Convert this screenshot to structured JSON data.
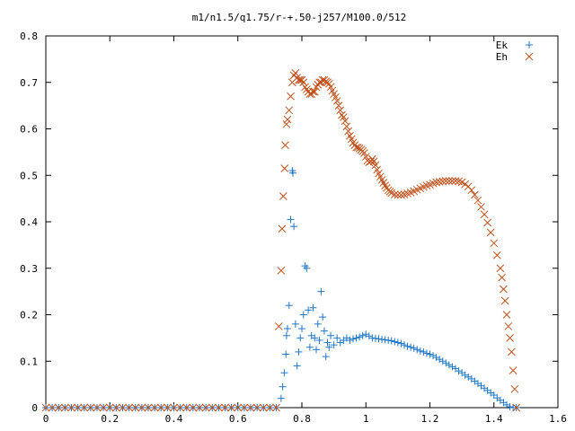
{
  "chart_data": {
    "type": "scatter",
    "title": "m1/n1.5/q1.75/r-+.50-j257/M100.0/512",
    "xlabel": "",
    "ylabel": "",
    "xlim": [
      0,
      1.6
    ],
    "ylim": [
      0,
      0.8
    ],
    "x_ticks": [
      "0",
      "0.2",
      "0.4",
      "0.6",
      "0.8",
      "1",
      "1.2",
      "1.4",
      "1.6"
    ],
    "y_ticks": [
      "0",
      "0.1",
      "0.2",
      "0.3",
      "0.4",
      "0.5",
      "0.6",
      "0.7",
      "0.8"
    ],
    "grid": false,
    "legend_position": "top-right",
    "series": [
      {
        "name": "Ek",
        "marker": "plus",
        "color": "#1f77c8",
        "points": [
          [
            0.0,
            0
          ],
          [
            0.02,
            0
          ],
          [
            0.04,
            0
          ],
          [
            0.06,
            0
          ],
          [
            0.08,
            0
          ],
          [
            0.1,
            0
          ],
          [
            0.12,
            0
          ],
          [
            0.14,
            0
          ],
          [
            0.16,
            0
          ],
          [
            0.18,
            0
          ],
          [
            0.2,
            0
          ],
          [
            0.22,
            0
          ],
          [
            0.24,
            0
          ],
          [
            0.26,
            0
          ],
          [
            0.28,
            0
          ],
          [
            0.3,
            0
          ],
          [
            0.32,
            0
          ],
          [
            0.34,
            0
          ],
          [
            0.36,
            0
          ],
          [
            0.38,
            0
          ],
          [
            0.4,
            0
          ],
          [
            0.42,
            0
          ],
          [
            0.44,
            0
          ],
          [
            0.46,
            0
          ],
          [
            0.48,
            0
          ],
          [
            0.5,
            0
          ],
          [
            0.52,
            0
          ],
          [
            0.54,
            0
          ],
          [
            0.56,
            0
          ],
          [
            0.58,
            0
          ],
          [
            0.6,
            0
          ],
          [
            0.62,
            0
          ],
          [
            0.64,
            0
          ],
          [
            0.66,
            0
          ],
          [
            0.68,
            0
          ],
          [
            0.7,
            0
          ],
          [
            0.72,
            0
          ],
          [
            0.735,
            0.02
          ],
          [
            0.74,
            0.045
          ],
          [
            0.745,
            0.075
          ],
          [
            0.75,
            0.115
          ],
          [
            0.752,
            0.155
          ],
          [
            0.755,
            0.17
          ],
          [
            0.76,
            0.22
          ],
          [
            0.765,
            0.405
          ],
          [
            0.77,
            0.51
          ],
          [
            0.772,
            0.505
          ],
          [
            0.775,
            0.39
          ],
          [
            0.78,
            0.18
          ],
          [
            0.785,
            0.09
          ],
          [
            0.79,
            0.12
          ],
          [
            0.795,
            0.15
          ],
          [
            0.8,
            0.17
          ],
          [
            0.805,
            0.2
          ],
          [
            0.81,
            0.305
          ],
          [
            0.815,
            0.3
          ],
          [
            0.82,
            0.21
          ],
          [
            0.825,
            0.13
          ],
          [
            0.83,
            0.155
          ],
          [
            0.835,
            0.215
          ],
          [
            0.84,
            0.15
          ],
          [
            0.845,
            0.125
          ],
          [
            0.85,
            0.18
          ],
          [
            0.855,
            0.145
          ],
          [
            0.86,
            0.25
          ],
          [
            0.865,
            0.195
          ],
          [
            0.87,
            0.165
          ],
          [
            0.875,
            0.11
          ],
          [
            0.88,
            0.14
          ],
          [
            0.885,
            0.13
          ],
          [
            0.89,
            0.155
          ],
          [
            0.9,
            0.135
          ],
          [
            0.91,
            0.15
          ],
          [
            0.92,
            0.14
          ],
          [
            0.93,
            0.145
          ],
          [
            0.94,
            0.15
          ],
          [
            0.95,
            0.145
          ],
          [
            0.96,
            0.148
          ],
          [
            0.97,
            0.15
          ],
          [
            0.98,
            0.152
          ],
          [
            0.99,
            0.155
          ],
          [
            1.0,
            0.158
          ],
          [
            1.01,
            0.154
          ],
          [
            1.02,
            0.15
          ],
          [
            1.03,
            0.149
          ],
          [
            1.04,
            0.148
          ],
          [
            1.05,
            0.147
          ],
          [
            1.06,
            0.146
          ],
          [
            1.07,
            0.145
          ],
          [
            1.08,
            0.144
          ],
          [
            1.09,
            0.142
          ],
          [
            1.1,
            0.14
          ],
          [
            1.11,
            0.138
          ],
          [
            1.12,
            0.135
          ],
          [
            1.13,
            0.132
          ],
          [
            1.14,
            0.13
          ],
          [
            1.15,
            0.128
          ],
          [
            1.16,
            0.125
          ],
          [
            1.17,
            0.122
          ],
          [
            1.18,
            0.12
          ],
          [
            1.19,
            0.117
          ],
          [
            1.2,
            0.115
          ],
          [
            1.21,
            0.112
          ],
          [
            1.22,
            0.108
          ],
          [
            1.23,
            0.104
          ],
          [
            1.24,
            0.1
          ],
          [
            1.25,
            0.096
          ],
          [
            1.26,
            0.092
          ],
          [
            1.27,
            0.088
          ],
          [
            1.28,
            0.084
          ],
          [
            1.29,
            0.079
          ],
          [
            1.3,
            0.075
          ],
          [
            1.31,
            0.07
          ],
          [
            1.32,
            0.066
          ],
          [
            1.33,
            0.062
          ],
          [
            1.34,
            0.057
          ],
          [
            1.35,
            0.052
          ],
          [
            1.36,
            0.047
          ],
          [
            1.37,
            0.042
          ],
          [
            1.38,
            0.037
          ],
          [
            1.39,
            0.032
          ],
          [
            1.4,
            0.027
          ],
          [
            1.41,
            0.021
          ],
          [
            1.42,
            0.016
          ],
          [
            1.43,
            0.011
          ],
          [
            1.44,
            0.006
          ],
          [
            1.45,
            0.002
          ],
          [
            1.46,
            0
          ],
          [
            1.47,
            0
          ]
        ]
      },
      {
        "name": "Eh",
        "marker": "cross",
        "color": "#c0501a",
        "points": [
          [
            0.0,
            0
          ],
          [
            0.02,
            0
          ],
          [
            0.04,
            0
          ],
          [
            0.06,
            0
          ],
          [
            0.08,
            0
          ],
          [
            0.1,
            0
          ],
          [
            0.12,
            0
          ],
          [
            0.14,
            0
          ],
          [
            0.16,
            0
          ],
          [
            0.18,
            0
          ],
          [
            0.2,
            0
          ],
          [
            0.22,
            0
          ],
          [
            0.24,
            0
          ],
          [
            0.26,
            0
          ],
          [
            0.28,
            0
          ],
          [
            0.3,
            0
          ],
          [
            0.32,
            0
          ],
          [
            0.34,
            0
          ],
          [
            0.36,
            0
          ],
          [
            0.38,
            0
          ],
          [
            0.4,
            0
          ],
          [
            0.42,
            0
          ],
          [
            0.44,
            0
          ],
          [
            0.46,
            0
          ],
          [
            0.48,
            0
          ],
          [
            0.5,
            0
          ],
          [
            0.52,
            0
          ],
          [
            0.54,
            0
          ],
          [
            0.56,
            0
          ],
          [
            0.58,
            0
          ],
          [
            0.6,
            0
          ],
          [
            0.62,
            0
          ],
          [
            0.64,
            0
          ],
          [
            0.66,
            0
          ],
          [
            0.68,
            0
          ],
          [
            0.7,
            0
          ],
          [
            0.72,
            0
          ],
          [
            0.728,
            0.175
          ],
          [
            0.735,
            0.295
          ],
          [
            0.738,
            0.385
          ],
          [
            0.742,
            0.455
          ],
          [
            0.746,
            0.515
          ],
          [
            0.748,
            0.565
          ],
          [
            0.752,
            0.61
          ],
          [
            0.755,
            0.62
          ],
          [
            0.76,
            0.64
          ],
          [
            0.765,
            0.67
          ],
          [
            0.77,
            0.7
          ],
          [
            0.775,
            0.715
          ],
          [
            0.78,
            0.72
          ],
          [
            0.785,
            0.71
          ],
          [
            0.79,
            0.705
          ],
          [
            0.795,
            0.705
          ],
          [
            0.8,
            0.705
          ],
          [
            0.805,
            0.7
          ],
          [
            0.81,
            0.69
          ],
          [
            0.815,
            0.685
          ],
          [
            0.82,
            0.68
          ],
          [
            0.825,
            0.675
          ],
          [
            0.83,
            0.675
          ],
          [
            0.835,
            0.68
          ],
          [
            0.84,
            0.68
          ],
          [
            0.845,
            0.69
          ],
          [
            0.85,
            0.695
          ],
          [
            0.855,
            0.7
          ],
          [
            0.86,
            0.7
          ],
          [
            0.865,
            0.705
          ],
          [
            0.87,
            0.705
          ],
          [
            0.875,
            0.702
          ],
          [
            0.88,
            0.7
          ],
          [
            0.885,
            0.697
          ],
          [
            0.89,
            0.69
          ],
          [
            0.895,
            0.682
          ],
          [
            0.9,
            0.675
          ],
          [
            0.905,
            0.668
          ],
          [
            0.91,
            0.66
          ],
          [
            0.915,
            0.65
          ],
          [
            0.92,
            0.64
          ],
          [
            0.925,
            0.63
          ],
          [
            0.93,
            0.625
          ],
          [
            0.935,
            0.617
          ],
          [
            0.94,
            0.605
          ],
          [
            0.945,
            0.595
          ],
          [
            0.95,
            0.585
          ],
          [
            0.955,
            0.578
          ],
          [
            0.96,
            0.57
          ],
          [
            0.965,
            0.565
          ],
          [
            0.97,
            0.56
          ],
          [
            0.975,
            0.56
          ],
          [
            0.98,
            0.558
          ],
          [
            0.985,
            0.555
          ],
          [
            0.99,
            0.552
          ],
          [
            0.995,
            0.548
          ],
          [
            1.0,
            0.54
          ],
          [
            1.005,
            0.532
          ],
          [
            1.01,
            0.528
          ],
          [
            1.015,
            0.53
          ],
          [
            1.02,
            0.535
          ],
          [
            1.025,
            0.53
          ],
          [
            1.03,
            0.522
          ],
          [
            1.035,
            0.512
          ],
          [
            1.04,
            0.504
          ],
          [
            1.045,
            0.497
          ],
          [
            1.05,
            0.49
          ],
          [
            1.055,
            0.484
          ],
          [
            1.06,
            0.478
          ],
          [
            1.065,
            0.473
          ],
          [
            1.07,
            0.468
          ],
          [
            1.075,
            0.465
          ],
          [
            1.08,
            0.462
          ],
          [
            1.09,
            0.459
          ],
          [
            1.1,
            0.458
          ],
          [
            1.11,
            0.458
          ],
          [
            1.12,
            0.459
          ],
          [
            1.13,
            0.461
          ],
          [
            1.14,
            0.463
          ],
          [
            1.15,
            0.466
          ],
          [
            1.16,
            0.469
          ],
          [
            1.17,
            0.472
          ],
          [
            1.18,
            0.475
          ],
          [
            1.19,
            0.478
          ],
          [
            1.2,
            0.48
          ],
          [
            1.21,
            0.483
          ],
          [
            1.22,
            0.485
          ],
          [
            1.23,
            0.486
          ],
          [
            1.24,
            0.487
          ],
          [
            1.25,
            0.488
          ],
          [
            1.26,
            0.488
          ],
          [
            1.27,
            0.488
          ],
          [
            1.28,
            0.488
          ],
          [
            1.29,
            0.487
          ],
          [
            1.3,
            0.485
          ],
          [
            1.31,
            0.481
          ],
          [
            1.32,
            0.476
          ],
          [
            1.33,
            0.468
          ],
          [
            1.34,
            0.458
          ],
          [
            1.35,
            0.446
          ],
          [
            1.36,
            0.432
          ],
          [
            1.37,
            0.416
          ],
          [
            1.38,
            0.398
          ],
          [
            1.39,
            0.377
          ],
          [
            1.4,
            0.354
          ],
          [
            1.41,
            0.328
          ],
          [
            1.42,
            0.3
          ],
          [
            1.425,
            0.28
          ],
          [
            1.43,
            0.255
          ],
          [
            1.435,
            0.23
          ],
          [
            1.44,
            0.2
          ],
          [
            1.445,
            0.175
          ],
          [
            1.45,
            0.15
          ],
          [
            1.455,
            0.12
          ],
          [
            1.46,
            0.08
          ],
          [
            1.465,
            0.04
          ],
          [
            1.47,
            0
          ]
        ]
      }
    ]
  }
}
